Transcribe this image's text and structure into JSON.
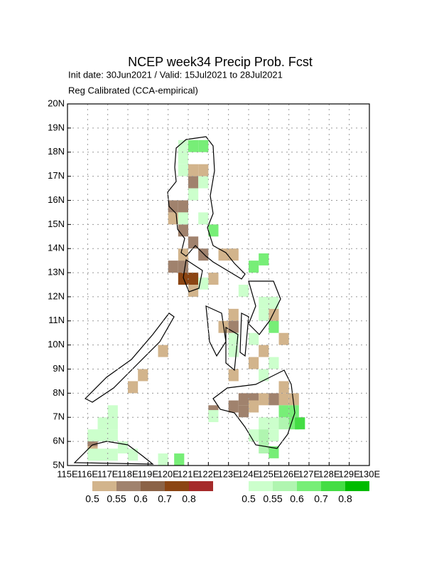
{
  "chart_data": {
    "type": "map",
    "title": "NCEP week34 Precip Prob. Fcst",
    "subtitle": "Init date: 30Jun2021 / Valid: 15Jul2021 to 28Jul2021",
    "note": "Reg Calibrated (CCA-empirical)",
    "xlim": [
      115,
      130
    ],
    "ylim": [
      5,
      20
    ],
    "xticks": [
      {
        "value": 115,
        "label": "115E"
      },
      {
        "value": 116,
        "label": "116E"
      },
      {
        "value": 117,
        "label": "117E"
      },
      {
        "value": 118,
        "label": "118E"
      },
      {
        "value": 119,
        "label": "119E"
      },
      {
        "value": 120,
        "label": "120E"
      },
      {
        "value": 121,
        "label": "121E"
      },
      {
        "value": 122,
        "label": "122E"
      },
      {
        "value": 123,
        "label": "123E"
      },
      {
        "value": 124,
        "label": "124E"
      },
      {
        "value": 125,
        "label": "125E"
      },
      {
        "value": 126,
        "label": "126E"
      },
      {
        "value": 127,
        "label": "127E"
      },
      {
        "value": 128,
        "label": "128E"
      },
      {
        "value": 129,
        "label": "129E"
      },
      {
        "value": 130,
        "label": "130E"
      }
    ],
    "yticks": [
      {
        "value": 5,
        "label": "5N"
      },
      {
        "value": 6,
        "label": "6N"
      },
      {
        "value": 7,
        "label": "7N"
      },
      {
        "value": 8,
        "label": "8N"
      },
      {
        "value": 9,
        "label": "9N"
      },
      {
        "value": 10,
        "label": "10N"
      },
      {
        "value": 11,
        "label": "11N"
      },
      {
        "value": 12,
        "label": "12N"
      },
      {
        "value": 13,
        "label": "13N"
      },
      {
        "value": 14,
        "label": "14N"
      },
      {
        "value": 15,
        "label": "15N"
      },
      {
        "value": 16,
        "label": "16N"
      },
      {
        "value": 17,
        "label": "17N"
      },
      {
        "value": 18,
        "label": "18N"
      },
      {
        "value": 19,
        "label": "19N"
      },
      {
        "value": 20,
        "label": "20N"
      }
    ],
    "grid": true,
    "legend_below": {
      "levels": [
        0.5,
        0.55,
        0.6,
        0.7,
        0.8
      ],
      "colors": [
        "#d2b48c",
        "#a0826d",
        "#8b6347",
        "#8b4513",
        "#a52a2a"
      ]
    },
    "legend_above": {
      "levels": [
        0.5,
        0.55,
        0.6,
        0.7,
        0.8
      ],
      "colors": [
        "#ccffcc",
        "#b0f5b0",
        "#77ee77",
        "#44dd44",
        "#00bb00"
      ]
    },
    "cells_below": [
      [
        121,
        17,
        0.5
      ],
      [
        121.5,
        17,
        0.5
      ],
      [
        121,
        16.5,
        0.55
      ],
      [
        120.5,
        15.5,
        0.55
      ],
      [
        120,
        15.5,
        0.55
      ],
      [
        120,
        15,
        0.5
      ],
      [
        120.5,
        14.5,
        0.55
      ],
      [
        121,
        14,
        0.55
      ],
      [
        120.5,
        13.5,
        0.5
      ],
      [
        120,
        13,
        0.55
      ],
      [
        120.5,
        13,
        0.55
      ],
      [
        120.5,
        12.5,
        0.7
      ],
      [
        121,
        12.5,
        0.7
      ],
      [
        121,
        12,
        0.5
      ],
      [
        121.5,
        13.5,
        0.55
      ],
      [
        122.5,
        13.5,
        0.5
      ],
      [
        123,
        13.5,
        0.5
      ],
      [
        122,
        12.5,
        0.5
      ],
      [
        123,
        11,
        0.5
      ],
      [
        122.5,
        10.5,
        0.5
      ],
      [
        123,
        10.5,
        0.55
      ],
      [
        125,
        11,
        0.5
      ],
      [
        125.5,
        10,
        0.5
      ],
      [
        119.5,
        9.5,
        0.5
      ],
      [
        118.5,
        8.5,
        0.5
      ],
      [
        118,
        8,
        0.5
      ],
      [
        116,
        5.5,
        0.5
      ],
      [
        116,
        5.8,
        0.55
      ],
      [
        123,
        7.2,
        0.55
      ],
      [
        123.5,
        7.5,
        0.55
      ],
      [
        124,
        7.5,
        0.55
      ],
      [
        123.5,
        7,
        0.55
      ],
      [
        124,
        7.2,
        0.5
      ],
      [
        124.5,
        7.5,
        0.5
      ],
      [
        125,
        7.5,
        0.55
      ],
      [
        125.5,
        7.5,
        0.5
      ],
      [
        126,
        7.5,
        0.5
      ],
      [
        125.5,
        8,
        0.5
      ],
      [
        122,
        7,
        0.55
      ],
      [
        124,
        9,
        0.5
      ],
      [
        124.5,
        9.5,
        0.5
      ],
      [
        123,
        8.5,
        0.5
      ]
    ],
    "cells_above": [
      [
        120.5,
        18,
        0.5
      ],
      [
        121,
        18,
        0.6
      ],
      [
        121.5,
        18,
        0.6
      ],
      [
        120.5,
        17.5,
        0.5
      ],
      [
        120.5,
        17,
        0.5
      ],
      [
        121,
        16,
        0.5
      ],
      [
        121.5,
        16.5,
        0.5
      ],
      [
        120.5,
        15,
        0.5
      ],
      [
        121.5,
        15,
        0.5
      ],
      [
        122,
        14.5,
        0.6
      ],
      [
        124,
        13,
        0.6
      ],
      [
        124.5,
        13.3,
        0.6
      ],
      [
        124.5,
        11.5,
        0.5
      ],
      [
        125,
        11.5,
        0.5
      ],
      [
        124.5,
        11,
        0.5
      ],
      [
        125,
        10.5,
        0.6
      ],
      [
        123.5,
        12,
        0.5
      ],
      [
        123,
        10,
        0.5
      ],
      [
        123,
        9.5,
        0.5
      ],
      [
        124,
        10,
        0.5
      ],
      [
        125,
        9,
        0.5
      ],
      [
        124.5,
        8.5,
        0.5
      ],
      [
        125,
        6.5,
        0.5
      ],
      [
        124.5,
        6.5,
        0.5
      ],
      [
        124,
        6,
        0.5
      ],
      [
        124.5,
        6,
        0.55
      ],
      [
        125,
        6,
        0.5
      ],
      [
        124.5,
        5.5,
        0.55
      ],
      [
        125,
        5.3,
        0.6
      ],
      [
        125.5,
        6.5,
        0.55
      ],
      [
        126,
        7,
        0.6
      ],
      [
        126,
        6.5,
        0.6
      ],
      [
        126.3,
        6.5,
        0.7
      ],
      [
        125.5,
        7,
        0.6
      ],
      [
        116,
        6,
        0.5
      ],
      [
        116.5,
        6.5,
        0.5
      ],
      [
        117,
        7,
        0.5
      ],
      [
        116.5,
        6,
        0.5
      ],
      [
        117,
        6.5,
        0.5
      ],
      [
        117,
        6,
        0.5
      ],
      [
        117.5,
        5.5,
        0.5
      ],
      [
        118,
        5.2,
        0.5
      ],
      [
        119.5,
        5,
        0.5
      ],
      [
        116,
        5.2,
        0.5
      ],
      [
        116.5,
        5.2,
        0.5
      ],
      [
        117,
        5.2,
        0.5
      ],
      [
        120.3,
        5,
        0.6
      ],
      [
        121.5,
        12.3,
        0.5
      ],
      [
        122,
        6.8,
        0.5
      ]
    ]
  }
}
